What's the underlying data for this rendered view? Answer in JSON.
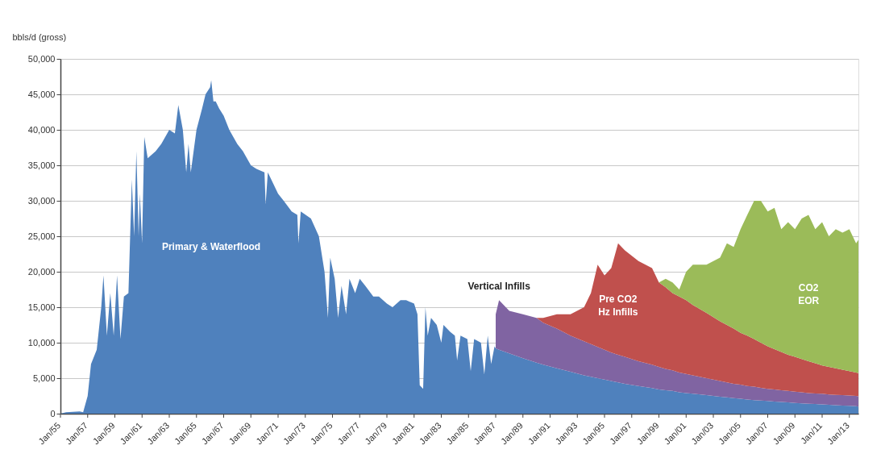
{
  "chart_data": {
    "type": "area",
    "stacked": true,
    "ylabel": "bbls/d (gross)",
    "grid": "y",
    "xlim": [
      "1955-01",
      "2013-09"
    ],
    "xticks": [
      {
        "value": "1955-01",
        "label": "Jan/55"
      },
      {
        "value": "1957-01",
        "label": "Jan/57"
      },
      {
        "value": "1959-01",
        "label": "Jan/59"
      },
      {
        "value": "1961-01",
        "label": "Jan/61"
      },
      {
        "value": "1963-01",
        "label": "Jan/63"
      },
      {
        "value": "1965-01",
        "label": "Jan/65"
      },
      {
        "value": "1967-01",
        "label": "Jan/67"
      },
      {
        "value": "1969-01",
        "label": "Jan/69"
      },
      {
        "value": "1971-01",
        "label": "Jan/71"
      },
      {
        "value": "1973-01",
        "label": "Jan/73"
      },
      {
        "value": "1975-01",
        "label": "Jan/75"
      },
      {
        "value": "1977-01",
        "label": "Jan/77"
      },
      {
        "value": "1979-01",
        "label": "Jan/79"
      },
      {
        "value": "1981-01",
        "label": "Jan/81"
      },
      {
        "value": "1983-01",
        "label": "Jan/83"
      },
      {
        "value": "1985-01",
        "label": "Jan/85"
      },
      {
        "value": "1987-01",
        "label": "Jan/87"
      },
      {
        "value": "1989-01",
        "label": "Jan/89"
      },
      {
        "value": "1991-01",
        "label": "Jan/91"
      },
      {
        "value": "1993-01",
        "label": "Jan/93"
      },
      {
        "value": "1995-01",
        "label": "Jan/95"
      },
      {
        "value": "1997-01",
        "label": "Jan/97"
      },
      {
        "value": "1999-01",
        "label": "Jan/99"
      },
      {
        "value": "2001-01",
        "label": "Jan/01"
      },
      {
        "value": "2003-01",
        "label": "Jan/03"
      },
      {
        "value": "2005-01",
        "label": "Jan/05"
      },
      {
        "value": "2007-01",
        "label": "Jan/07"
      },
      {
        "value": "2009-01",
        "label": "Jan/09"
      },
      {
        "value": "2011-01",
        "label": "Jan/11"
      },
      {
        "value": "2013-01",
        "label": "Jan/13"
      }
    ],
    "ylim": [
      0,
      50000
    ],
    "yticks": [
      0,
      {
        "value": 5000,
        "label": "5,000"
      },
      {
        "value": 10000,
        "label": "10,000"
      },
      {
        "value": 15000,
        "label": "15,000"
      },
      {
        "value": 20000,
        "label": "20,000"
      },
      {
        "value": 25000,
        "label": "25,000"
      },
      {
        "value": 30000,
        "label": "30,000"
      },
      {
        "value": 35000,
        "label": "35,000"
      },
      {
        "value": 40000,
        "label": "40,000"
      },
      {
        "value": 45000,
        "label": "45,000"
      },
      {
        "value": 50000,
        "label": "50,000"
      }
    ],
    "x": [
      "1955-01",
      "1955-06",
      "1956-06",
      "1956-09",
      "1957-01",
      "1957-04",
      "1957-09",
      "1958-01",
      "1958-03",
      "1958-06",
      "1958-09",
      "1958-12",
      "1959-03",
      "1959-06",
      "1959-09",
      "1960-01",
      "1960-04",
      "1960-06",
      "1960-08",
      "1960-10",
      "1960-11",
      "1961-01",
      "1961-03",
      "1961-06",
      "1962-01",
      "1962-06",
      "1963-01",
      "1963-06",
      "1963-09",
      "1964-01",
      "1964-04",
      "1964-06",
      "1964-08",
      "1965-01",
      "1965-06",
      "1965-09",
      "1966-01",
      "1966-02",
      "1966-04",
      "1966-06",
      "1966-09",
      "1967-01",
      "1967-06",
      "1968-01",
      "1968-06",
      "1969-01",
      "1969-06",
      "1970-01",
      "1970-02",
      "1970-04",
      "1971-01",
      "1971-06",
      "1972-01",
      "1972-06",
      "1972-07",
      "1972-09",
      "1973-06",
      "1974-01",
      "1974-06",
      "1974-09",
      "1974-11",
      "1975-03",
      "1975-06",
      "1975-09",
      "1976-01",
      "1976-04",
      "1976-09",
      "1977-01",
      "1977-06",
      "1978-01",
      "1978-06",
      "1979-01",
      "1979-06",
      "1980-01",
      "1980-06",
      "1981-01",
      "1981-04",
      "1981-06",
      "1981-09",
      "1981-11",
      "1982-01",
      "1982-04",
      "1982-09",
      "1983-01",
      "1983-03",
      "1983-09",
      "1984-01",
      "1984-03",
      "1984-06",
      "1984-12",
      "1985-03",
      "1985-06",
      "1985-12",
      "1986-03",
      "1986-06",
      "1986-09",
      "1986-12",
      "1987-01",
      "1987-04",
      "1988-01",
      "1989-01",
      "1990-01",
      "1990-07",
      "1991-07",
      "1992-07",
      "1993-07",
      "1994-01",
      "1994-07",
      "1995-01",
      "1995-07",
      "1996-01",
      "1996-07",
      "1997-07",
      "1998-07",
      "1999-01",
      "1999-07",
      "2000-01",
      "2000-07",
      "2001-01",
      "2001-07",
      "2002-07",
      "2003-07",
      "2004-01",
      "2004-07",
      "2005-01",
      "2005-07",
      "2006-01",
      "2006-07",
      "2007-01",
      "2007-07",
      "2008-01",
      "2008-07",
      "2009-01",
      "2009-07",
      "2010-01",
      "2010-07",
      "2011-01",
      "2011-07",
      "2012-01",
      "2012-07",
      "2013-01",
      "2013-07",
      "2013-09"
    ],
    "series": [
      {
        "name": "Primary & Waterflood",
        "color": "#4f81bd",
        "values": [
          0,
          200,
          300,
          200,
          2500,
          7000,
          9000,
          15000,
          19500,
          11000,
          17000,
          11000,
          19500,
          10500,
          16500,
          17000,
          33000,
          25000,
          37000,
          25000,
          31000,
          24000,
          39000,
          36000,
          37000,
          38000,
          40000,
          39500,
          43500,
          40000,
          34000,
          38000,
          34000,
          40000,
          43000,
          45000,
          46000,
          47000,
          44000,
          44000,
          43000,
          42000,
          40000,
          38000,
          37000,
          35000,
          34500,
          34000,
          29500,
          34000,
          31000,
          30000,
          28500,
          28000,
          24000,
          28500,
          27500,
          25000,
          20000,
          13500,
          22000,
          19000,
          13500,
          18000,
          14000,
          19000,
          17000,
          19000,
          18000,
          16500,
          16500,
          15500,
          15000,
          16000,
          16000,
          15500,
          14000,
          4000,
          3500,
          15000,
          11000,
          13500,
          12500,
          10000,
          12500,
          11500,
          11000,
          7500,
          11000,
          10500,
          6000,
          10500,
          10000,
          5500,
          11000,
          7000,
          9500,
          9200,
          9000,
          8500,
          7800,
          7200,
          6900,
          6400,
          5900,
          5400,
          5200,
          5000,
          4800,
          4600,
          4400,
          4200,
          3900,
          3600,
          3400,
          3300,
          3200,
          3000,
          2900,
          2800,
          2600,
          2400,
          2300,
          2200,
          2100,
          2000,
          1900,
          1850,
          1800,
          1700,
          1650,
          1600,
          1500,
          1450,
          1400,
          1350,
          1300,
          1250,
          1200,
          1150,
          1100,
          1050,
          1000
        ]
      },
      {
        "name": "Vertical Infills",
        "color": "#8064a2",
        "values": [
          null,
          null,
          null,
          null,
          null,
          null,
          null,
          null,
          null,
          null,
          null,
          null,
          null,
          null,
          null,
          null,
          null,
          null,
          null,
          null,
          null,
          null,
          null,
          null,
          null,
          null,
          null,
          null,
          null,
          null,
          null,
          null,
          null,
          null,
          null,
          null,
          null,
          null,
          null,
          null,
          null,
          null,
          null,
          null,
          null,
          null,
          null,
          null,
          null,
          null,
          null,
          null,
          null,
          null,
          null,
          null,
          null,
          null,
          null,
          null,
          null,
          null,
          null,
          null,
          null,
          null,
          null,
          null,
          null,
          null,
          null,
          null,
          null,
          null,
          null,
          null,
          null,
          null,
          null,
          null,
          null,
          null,
          null,
          null,
          null,
          null,
          null,
          null,
          null,
          null,
          null,
          null,
          null,
          null,
          null,
          null,
          null,
          4800,
          7000,
          6000,
          6200,
          6300,
          5900,
          5600,
          5100,
          4800,
          4600,
          4400,
          4200,
          4000,
          3900,
          3800,
          3500,
          3300,
          3200,
          3000,
          2900,
          2800,
          2700,
          2600,
          2400,
          2200,
          2100,
          2000,
          2000,
          1900,
          1900,
          1800,
          1700,
          1700,
          1650,
          1600,
          1600,
          1550,
          1500,
          1500,
          1500,
          1450,
          1450,
          1450,
          1450,
          1450,
          1450
        ]
      },
      {
        "name": "Pre CO2 Hz Infills",
        "color": "#c0504d",
        "values": [
          null,
          null,
          null,
          null,
          null,
          null,
          null,
          null,
          null,
          null,
          null,
          null,
          null,
          null,
          null,
          null,
          null,
          null,
          null,
          null,
          null,
          null,
          null,
          null,
          null,
          null,
          null,
          null,
          null,
          null,
          null,
          null,
          null,
          null,
          null,
          null,
          null,
          null,
          null,
          null,
          null,
          null,
          null,
          null,
          null,
          null,
          null,
          null,
          null,
          null,
          null,
          null,
          null,
          null,
          null,
          null,
          null,
          null,
          null,
          null,
          null,
          null,
          null,
          null,
          null,
          null,
          null,
          null,
          null,
          null,
          null,
          null,
          null,
          null,
          null,
          null,
          null,
          null,
          null,
          null,
          null,
          null,
          null,
          null,
          null,
          null,
          null,
          null,
          null,
          null,
          null,
          null,
          null,
          null,
          null,
          null,
          null,
          null,
          null,
          null,
          null,
          0,
          700,
          2000,
          3000,
          4800,
          7200,
          11600,
          10500,
          11900,
          15700,
          15000,
          14100,
          13600,
          11900,
          11500,
          10900,
          10700,
          10400,
          9900,
          9200,
          8400,
          8100,
          7800,
          7300,
          7100,
          6700,
          6350,
          6000,
          5700,
          5400,
          5100,
          4900,
          4700,
          4500,
          4250,
          4000,
          3900,
          3750,
          3600,
          3450,
          3300,
          3250
        ]
      },
      {
        "name": "CO2 EOR",
        "color": "#9bbb59",
        "values": [
          null,
          null,
          null,
          null,
          null,
          null,
          null,
          null,
          null,
          null,
          null,
          null,
          null,
          null,
          null,
          null,
          null,
          null,
          null,
          null,
          null,
          null,
          null,
          null,
          null,
          null,
          null,
          null,
          null,
          null,
          null,
          null,
          null,
          null,
          null,
          null,
          null,
          null,
          null,
          null,
          null,
          null,
          null,
          null,
          null,
          null,
          null,
          null,
          null,
          null,
          null,
          null,
          null,
          null,
          null,
          null,
          null,
          null,
          null,
          null,
          null,
          null,
          null,
          null,
          null,
          null,
          null,
          null,
          null,
          null,
          null,
          null,
          null,
          null,
          null,
          null,
          null,
          null,
          null,
          null,
          null,
          null,
          null,
          null,
          null,
          null,
          null,
          null,
          null,
          null,
          null,
          null,
          null,
          null,
          null,
          null,
          null,
          null,
          null,
          null,
          null,
          null,
          null,
          null,
          null,
          null,
          null,
          null,
          null,
          null,
          null,
          null,
          null,
          null,
          0,
          1200,
          1500,
          1000,
          4000,
          5700,
          6800,
          9000,
          11500,
          11500,
          14600,
          17000,
          19500,
          20000,
          19000,
          19900,
          17300,
          18700,
          18000,
          19800,
          20600,
          18900,
          20200,
          18400,
          19600,
          19300,
          20000,
          18200,
          18800
        ]
      }
    ]
  }
}
